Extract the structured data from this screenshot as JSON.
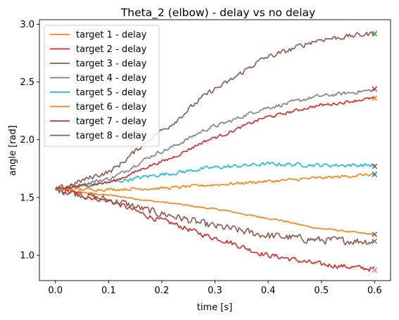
{
  "chart_data": {
    "type": "line",
    "title": "Theta_2 (elbow) - delay vs no delay",
    "xlabel": "time [s]",
    "ylabel": "angle [rad]",
    "xlim": [
      -0.03,
      0.63
    ],
    "ylim": [
      0.78,
      3.04
    ],
    "xticks": [
      0.0,
      0.1,
      0.2,
      0.3,
      0.4,
      0.5,
      0.6
    ],
    "xtick_labels": [
      "0.0",
      "0.1",
      "0.2",
      "0.3",
      "0.4",
      "0.5",
      "0.6"
    ],
    "yticks": [
      1.0,
      1.5,
      2.0,
      2.5,
      3.0
    ],
    "ytick_labels": [
      "1.0",
      "1.5",
      "2.0",
      "2.5",
      "3.0"
    ],
    "grid": false,
    "legend_position": "upper-left",
    "series": [
      {
        "name": "target 1 - delay",
        "color": "#ff7f0e",
        "noise": 0.006,
        "x": [
          0,
          0.1,
          0.2,
          0.3,
          0.4,
          0.5,
          0.6
        ],
        "y": [
          1.57,
          1.52,
          1.46,
          1.4,
          1.32,
          1.23,
          1.18
        ]
      },
      {
        "name": "target 2 - delay",
        "color": "#d62728",
        "noise": 0.02,
        "x": [
          0,
          0.1,
          0.2,
          0.3,
          0.4,
          0.5,
          0.6
        ],
        "y": [
          1.57,
          1.47,
          1.3,
          1.15,
          1.0,
          0.92,
          0.88
        ]
      },
      {
        "name": "target 3 - delay",
        "color": "#8c564b",
        "noise": 0.03,
        "x": [
          0,
          0.1,
          0.2,
          0.3,
          0.4,
          0.5,
          0.6
        ],
        "y": [
          1.57,
          1.48,
          1.36,
          1.25,
          1.17,
          1.13,
          1.12
        ]
      },
      {
        "name": "target 4 - delay",
        "color": "#7f7f7f",
        "noise": 0.015,
        "x": [
          0,
          0.1,
          0.2,
          0.3,
          0.4,
          0.5,
          0.6
        ],
        "y": [
          1.57,
          1.66,
          1.9,
          2.12,
          2.28,
          2.38,
          2.43
        ]
      },
      {
        "name": "target 5 - delay",
        "color": "#17becf",
        "noise": 0.015,
        "x": [
          0,
          0.1,
          0.2,
          0.3,
          0.4,
          0.5,
          0.6
        ],
        "y": [
          1.57,
          1.63,
          1.7,
          1.76,
          1.79,
          1.78,
          1.78
        ]
      },
      {
        "name": "target 6 - delay",
        "color": "#ff7f0e",
        "noise": 0.012,
        "x": [
          0,
          0.1,
          0.2,
          0.3,
          0.4,
          0.5,
          0.6
        ],
        "y": [
          1.57,
          1.57,
          1.58,
          1.61,
          1.64,
          1.67,
          1.7
        ]
      },
      {
        "name": "target 7 - delay",
        "color": "#d62728",
        "noise": 0.012,
        "x": [
          0,
          0.1,
          0.2,
          0.3,
          0.4,
          0.5,
          0.6
        ],
        "y": [
          1.57,
          1.63,
          1.81,
          2.02,
          2.2,
          2.3,
          2.36
        ]
      },
      {
        "name": "target 8 - delay",
        "color": "#8c564b",
        "noise": 0.02,
        "x": [
          0,
          0.1,
          0.2,
          0.3,
          0.4,
          0.5,
          0.6
        ],
        "y": [
          1.57,
          1.72,
          2.08,
          2.44,
          2.72,
          2.87,
          2.92
        ]
      }
    ],
    "target_markers": [
      {
        "x": 0.6,
        "y": 2.92,
        "color": "#2ca02c"
      },
      {
        "x": 0.6,
        "y": 2.44,
        "color": "#d62728"
      },
      {
        "x": 0.6,
        "y": 2.36,
        "color": "#ff7f0e"
      },
      {
        "x": 0.6,
        "y": 1.77,
        "color": "#e377c2"
      },
      {
        "x": 0.6,
        "y": 1.77,
        "color": "#8c564b"
      },
      {
        "x": 0.6,
        "y": 1.7,
        "color": "#1f77b4"
      },
      {
        "x": 0.6,
        "y": 1.18,
        "color": "#8c564b"
      },
      {
        "x": 0.6,
        "y": 1.12,
        "color": "#7f7f7f"
      },
      {
        "x": 0.6,
        "y": 0.87,
        "color": "#e377c2"
      }
    ]
  }
}
